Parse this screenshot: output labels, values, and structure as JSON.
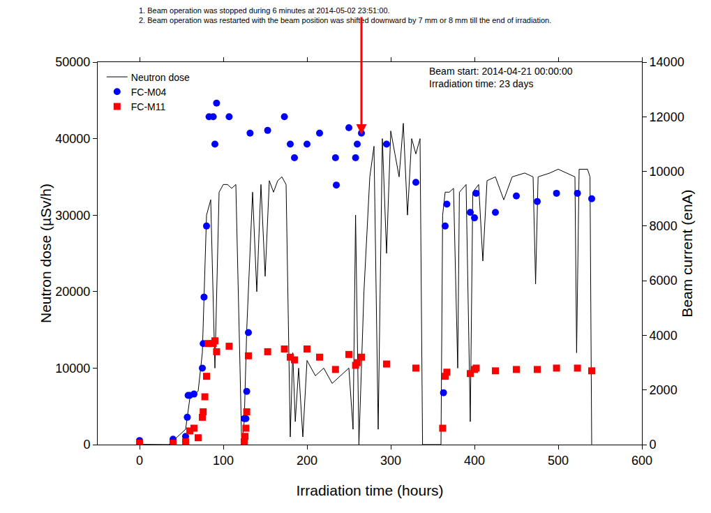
{
  "chart_data": {
    "type": "line",
    "x_label": "Irradiation time (hours)",
    "y_label": "Neutron dose (µSv/h)",
    "y2_label": "Beam current (enA)",
    "xlim": [
      -50,
      600
    ],
    "xticks": [
      0,
      100,
      200,
      300,
      400,
      500,
      600
    ],
    "ylim": [
      0,
      50000
    ],
    "yticks": [
      0,
      10000,
      20000,
      30000,
      40000,
      50000
    ],
    "y2lim": [
      0,
      14000
    ],
    "y2ticks": [
      0,
      2000,
      4000,
      6000,
      8000,
      10000,
      12000,
      14000
    ],
    "grid": false,
    "legend": "top left",
    "note": {
      "lines": [
        "1. Beam operation was stopped during 6 minutes at 2014-05-02 23:51:00.",
        "2. Beam operation was restarted with the beam position was shifted downward by 7 mm or 8 mm till the end of irradiation."
      ],
      "arrow_x": 265,
      "arrow_y": 40500
    },
    "info_lines": [
      "Beam start: 2014-04-21 00:00:00",
      "Irradiation time: 23 days"
    ],
    "series": [
      {
        "name": "Neutron dose",
        "type": "line",
        "color": "#000000",
        "line_style": "solid",
        "axis": "y",
        "x": [
          0,
          35,
          55,
          60,
          70,
          75,
          80,
          85,
          90,
          95,
          100,
          105,
          110,
          115,
          120,
          122,
          125,
          128,
          135,
          140,
          145,
          150,
          155,
          160,
          165,
          170,
          175,
          180,
          183,
          186,
          190,
          195,
          200,
          210,
          220,
          230,
          240,
          250,
          255,
          258,
          262,
          268,
          275,
          280,
          285,
          290,
          295,
          300,
          305,
          310,
          315,
          320,
          325,
          330,
          335,
          338,
          360,
          362,
          365,
          370,
          375,
          380,
          382,
          390,
          395,
          398,
          405,
          410,
          415,
          425,
          435,
          445,
          460,
          470,
          473,
          476,
          490,
          500,
          510,
          520,
          522,
          525,
          535,
          538,
          540
        ],
        "values": [
          30,
          0,
          2000,
          6000,
          7000,
          12000,
          30000,
          32000,
          10000,
          33000,
          34000,
          34000,
          33500,
          34000,
          10000,
          0,
          3000,
          15000,
          33000,
          20000,
          34000,
          22000,
          34500,
          33000,
          34500,
          35000,
          34000,
          1000,
          12000,
          3000,
          10000,
          1000,
          11000,
          9000,
          10000,
          8000,
          9000,
          10000,
          2000,
          30000,
          0,
          20000,
          35000,
          39000,
          2000,
          40000,
          25000,
          41000,
          38000,
          35000,
          42000,
          30000,
          40000,
          38000,
          40000,
          0,
          0,
          30000,
          33000,
          33000,
          33500,
          10000,
          33000,
          34000,
          3000,
          33000,
          34000,
          24000,
          34500,
          35000,
          32000,
          35000,
          35500,
          35000,
          21000,
          35000,
          35500,
          36000,
          35500,
          35000,
          12000,
          36000,
          36000,
          35000,
          0
        ]
      },
      {
        "name": "FC-M04",
        "type": "scatter",
        "marker": "circle",
        "color": "#0000ff",
        "axis": "y2",
        "x": [
          0,
          40,
          55,
          57,
          58,
          60,
          65,
          75,
          76,
          77,
          80,
          83,
          88,
          90,
          92,
          107,
          125,
          127,
          128,
          130,
          132,
          153,
          173,
          180,
          185,
          200,
          215,
          234,
          235,
          250,
          258,
          260,
          265,
          295,
          330,
          363,
          365,
          367,
          395,
          400,
          402,
          425,
          450,
          475,
          498,
          523,
          540
        ],
        "values": [
          150,
          200,
          300,
          1000,
          1800,
          1800,
          1850,
          2800,
          3700,
          5400,
          8000,
          12000,
          12000,
          11000,
          12500,
          12000,
          950,
          950,
          1950,
          4100,
          11400,
          11500,
          12000,
          11000,
          10500,
          11000,
          11400,
          10500,
          9500,
          11600,
          10500,
          11000,
          11400,
          11000,
          9600,
          1900,
          8000,
          8800,
          8500,
          8300,
          9200,
          8500,
          9100,
          8900,
          9200,
          9200,
          9000
        ]
      },
      {
        "name": "FC-M11",
        "type": "scatter",
        "marker": "square",
        "color": "#ff0000",
        "axis": "y2",
        "x": [
          0,
          40,
          55,
          60,
          65,
          70,
          75,
          76,
          78,
          80,
          82,
          88,
          90,
          92,
          107,
          125,
          126,
          127,
          128,
          130,
          153,
          173,
          180,
          185,
          200,
          215,
          234,
          250,
          258,
          260,
          265,
          295,
          330,
          362,
          365,
          367,
          395,
          400,
          402,
          425,
          450,
          475,
          498,
          523,
          540
        ],
        "values": [
          50,
          50,
          100,
          500,
          600,
          250,
          1000,
          1200,
          1750,
          2500,
          3700,
          3700,
          3800,
          3400,
          3600,
          100,
          300,
          600,
          1200,
          3250,
          3400,
          3500,
          3200,
          3100,
          3500,
          3200,
          2750,
          3300,
          2900,
          3000,
          3200,
          2950,
          2800,
          600,
          2500,
          2650,
          2600,
          2750,
          2800,
          2700,
          2750,
          2750,
          2800,
          2800,
          2700
        ]
      }
    ]
  }
}
